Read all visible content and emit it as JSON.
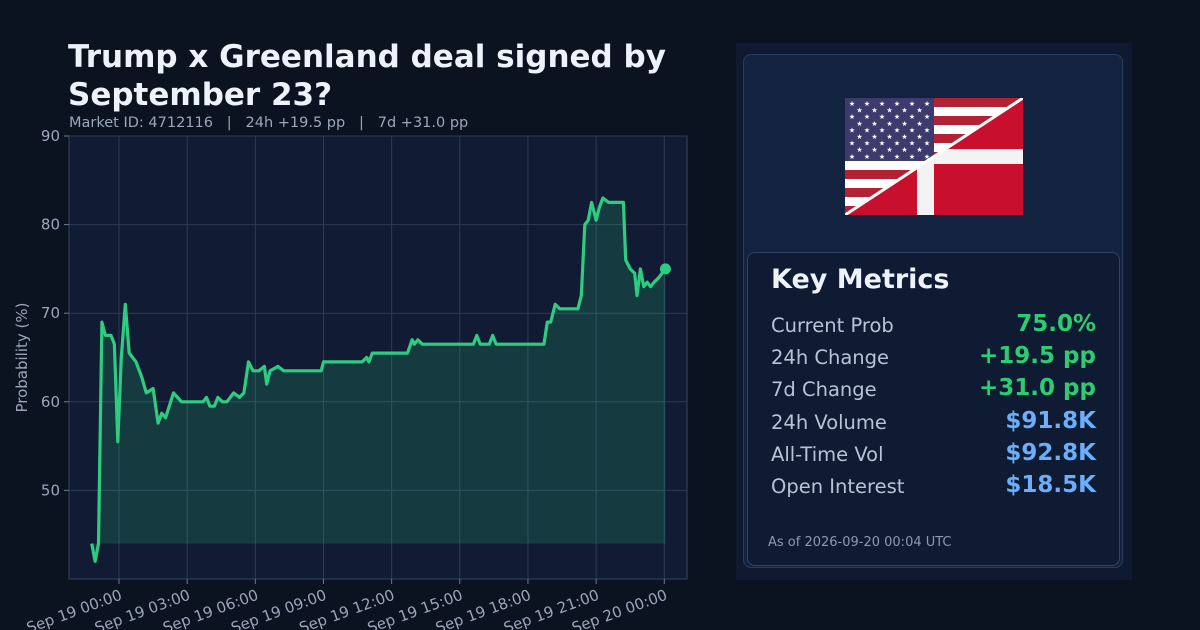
{
  "header": {
    "title": "Trump x Greenland deal signed by September 23?",
    "market_id": "Market ID: 4712116",
    "change_24h": "24h +19.5 pp",
    "change_7d": "7d +31.0 pp",
    "separator": "|"
  },
  "colors": {
    "background": "#0b1220",
    "plot_bg": "#111b33",
    "line": "#2ecc80",
    "positive": "#2ecc71",
    "volume": "#6aaefc"
  },
  "flag": {
    "icon": "usa-denmark-split-flag"
  },
  "metrics": {
    "title": "Key Metrics",
    "rows": [
      {
        "label": "Current Prob",
        "value": "75.0%",
        "color": "#2ecc71"
      },
      {
        "label": "24h Change",
        "value": "+19.5 pp",
        "color": "#2ecc71"
      },
      {
        "label": "7d Change",
        "value": "+31.0 pp",
        "color": "#2ecc71"
      },
      {
        "label": "24h Volume",
        "value": "$91.8K",
        "color": "#6aaefc"
      },
      {
        "label": "All-Time Vol",
        "value": "$92.8K",
        "color": "#6aaefc"
      },
      {
        "label": "Open Interest",
        "value": "$18.5K",
        "color": "#6aaefc"
      }
    ],
    "as_of": "As of 2026-09-20 00:04 UTC"
  },
  "chart_data": {
    "type": "area",
    "ylabel": "Probability (%)",
    "ylim": [
      40,
      90
    ],
    "yticks": [
      50,
      60,
      70,
      80,
      90
    ],
    "x_hours_start": -2.2,
    "x_hours_end": 25.0,
    "xticks": [
      {
        "h": 0,
        "label": "Sep 19 00:00"
      },
      {
        "h": 3,
        "label": "Sep 19 03:00"
      },
      {
        "h": 6,
        "label": "Sep 19 06:00"
      },
      {
        "h": 9,
        "label": "Sep 19 09:00"
      },
      {
        "h": 12,
        "label": "Sep 19 12:00"
      },
      {
        "h": 15,
        "label": "Sep 19 15:00"
      },
      {
        "h": 18,
        "label": "Sep 19 18:00"
      },
      {
        "h": 21,
        "label": "Sep 19 21:00"
      },
      {
        "h": 24,
        "label": "Sep 20 00:00"
      }
    ],
    "fill_base": 44,
    "grid": true,
    "series": [
      {
        "points": [
          [
            -1.2,
            44
          ],
          [
            -1.05,
            42
          ],
          [
            -0.9,
            44
          ],
          [
            -0.75,
            69
          ],
          [
            -0.6,
            67.5
          ],
          [
            -0.35,
            67.5
          ],
          [
            -0.2,
            66.5
          ],
          [
            -0.05,
            55.5
          ],
          [
            0.1,
            65
          ],
          [
            0.28,
            71
          ],
          [
            0.45,
            65.5
          ],
          [
            0.75,
            64.5
          ],
          [
            1.0,
            62.8
          ],
          [
            1.2,
            61
          ],
          [
            1.5,
            61.5
          ],
          [
            1.72,
            57.6
          ],
          [
            1.88,
            58.7
          ],
          [
            2.05,
            58.2
          ],
          [
            2.4,
            61
          ],
          [
            2.75,
            60
          ],
          [
            3.2,
            60
          ],
          [
            3.7,
            60
          ],
          [
            3.85,
            60.5
          ],
          [
            4.0,
            59.5
          ],
          [
            4.2,
            59.5
          ],
          [
            4.35,
            60.5
          ],
          [
            4.55,
            60
          ],
          [
            4.75,
            60
          ],
          [
            5.05,
            61
          ],
          [
            5.3,
            60.5
          ],
          [
            5.5,
            61
          ],
          [
            5.7,
            64.5
          ],
          [
            5.9,
            63.5
          ],
          [
            6.15,
            63.5
          ],
          [
            6.4,
            64
          ],
          [
            6.5,
            62
          ],
          [
            6.65,
            63.5
          ],
          [
            7.0,
            64
          ],
          [
            7.25,
            63.5
          ],
          [
            8.0,
            63.5
          ],
          [
            8.9,
            63.5
          ],
          [
            9.0,
            64.5
          ],
          [
            10.3,
            64.5
          ],
          [
            10.7,
            64.5
          ],
          [
            10.9,
            65
          ],
          [
            11.0,
            64.5
          ],
          [
            11.15,
            65.5
          ],
          [
            12.4,
            65.5
          ],
          [
            12.7,
            65.5
          ],
          [
            12.9,
            67
          ],
          [
            13.0,
            66.5
          ],
          [
            13.15,
            67
          ],
          [
            13.35,
            66.5
          ],
          [
            15.6,
            66.5
          ],
          [
            15.75,
            67.5
          ],
          [
            15.9,
            66.5
          ],
          [
            16.3,
            66.5
          ],
          [
            16.45,
            67.5
          ],
          [
            16.6,
            66.5
          ],
          [
            18.7,
            66.5
          ],
          [
            18.85,
            69
          ],
          [
            19.0,
            69
          ],
          [
            19.2,
            71
          ],
          [
            19.4,
            70.5
          ],
          [
            20.2,
            70.5
          ],
          [
            20.35,
            72
          ],
          [
            20.5,
            80
          ],
          [
            20.65,
            80.5
          ],
          [
            20.8,
            82.5
          ],
          [
            21.0,
            80.5
          ],
          [
            21.15,
            82
          ],
          [
            21.3,
            83
          ],
          [
            21.55,
            82.5
          ],
          [
            22.2,
            82.5
          ],
          [
            22.3,
            76
          ],
          [
            22.5,
            75
          ],
          [
            22.7,
            74.5
          ],
          [
            22.8,
            72
          ],
          [
            22.95,
            75
          ],
          [
            23.1,
            73
          ],
          [
            23.25,
            73.5
          ],
          [
            23.4,
            73
          ],
          [
            23.55,
            73.5
          ],
          [
            23.75,
            74
          ],
          [
            23.9,
            74.5
          ],
          [
            24.05,
            75
          ]
        ]
      }
    ]
  }
}
